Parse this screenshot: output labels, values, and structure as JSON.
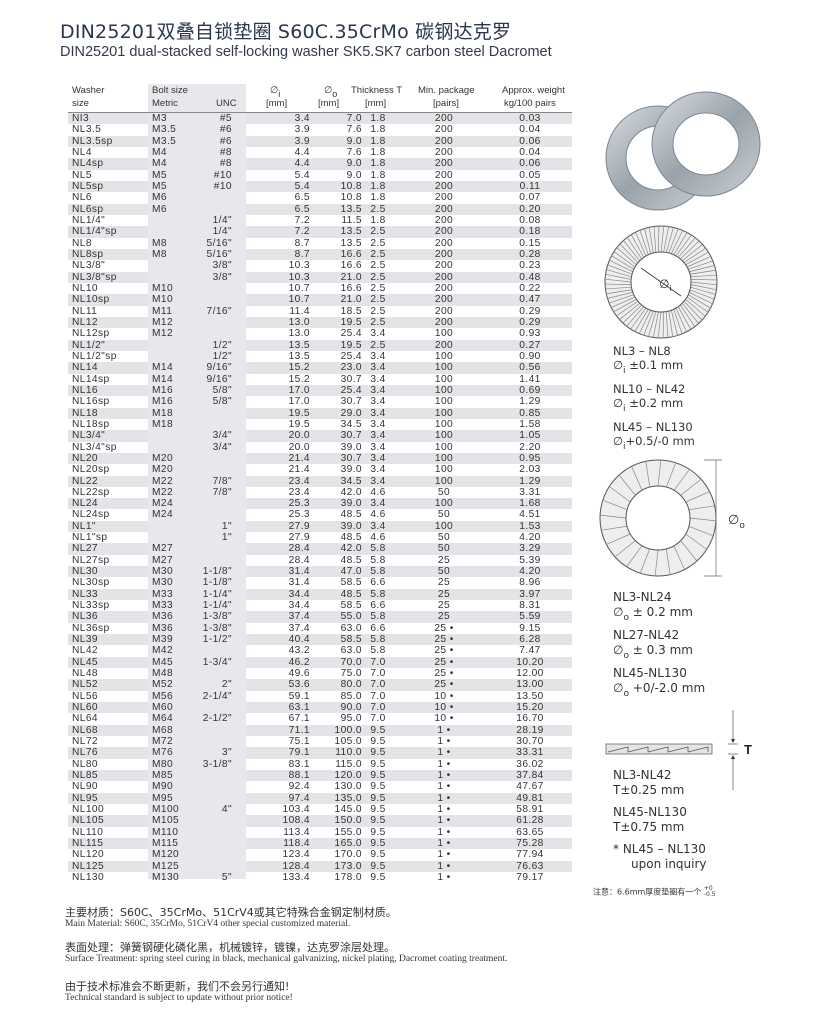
{
  "title": "DIN25201双叠自锁垫圈 S60C.35CrMo 碳钢达克罗",
  "subtitle": "DIN25201 dual-stacked self-locking washer SK5.SK7 carbon steel Dacromet",
  "table": {
    "headers": {
      "washer": [
        "Washer",
        "size"
      ],
      "bolt": "Bolt size",
      "metric": "Metric",
      "unc": "UNC",
      "di": [
        "∅",
        "i",
        "[mm]"
      ],
      "do": [
        "∅",
        "o",
        "[mm]"
      ],
      "thickness": [
        "Thickness T",
        "[mm]"
      ],
      "package": [
        "Min. package",
        "[pairs]"
      ],
      "weight": [
        "Approx. weight",
        "kg/100 pairs"
      ]
    },
    "rows": [
      [
        "NI3",
        "M3",
        "#5",
        "3.4",
        "7.0",
        "1.8",
        "200",
        "0.03"
      ],
      [
        "NL3.5",
        "M3.5",
        "#6",
        "3.9",
        "7.6",
        "1.8",
        "200",
        "0.04"
      ],
      [
        "NL3.5sp",
        "M3.5",
        "#6",
        "3.9",
        "9.0",
        "1.8",
        "200",
        "0.06"
      ],
      [
        "NL4",
        "M4",
        "#8",
        "4.4",
        "7.6",
        "1.8",
        "200",
        "0.04"
      ],
      [
        "NL4sp",
        "M4",
        "#8",
        "4.4",
        "9.0",
        "1.8",
        "200",
        "0.06"
      ],
      [
        "NL5",
        "M5",
        "#10",
        "5.4",
        "9.0",
        "1.8",
        "200",
        "0.05"
      ],
      [
        "NL5sp",
        "M5",
        "#10",
        "5.4",
        "10.8",
        "1.8",
        "200",
        "0.11"
      ],
      [
        "NL6",
        "M6",
        "",
        "6.5",
        "10.8",
        "1.8",
        "200",
        "0.07"
      ],
      [
        "NL6sp",
        "M6",
        "",
        "6.5",
        "13.5",
        "2.5",
        "200",
        "0.20"
      ],
      [
        "NL1/4\"",
        "",
        "1/4\"",
        "7.2",
        "11.5",
        "1.8",
        "200",
        "0.08"
      ],
      [
        "NL1/4\"sp",
        "",
        "1/4\"",
        "7.2",
        "13.5",
        "2.5",
        "200",
        "0.18"
      ],
      [
        "NL8",
        "M8",
        "5/16\"",
        "8.7",
        "13.5",
        "2.5",
        "200",
        "0.15"
      ],
      [
        "NL8sp",
        "M8",
        "5/16\"",
        "8.7",
        "16.6",
        "2.5",
        "200",
        "0.28"
      ],
      [
        "NL3/8\"",
        "",
        "3/8\"",
        "10.3",
        "16.6",
        "2.5",
        "200",
        "0.23"
      ],
      [
        "NL3/8\"sp",
        "",
        "3/8\"",
        "10.3",
        "21.0",
        "2.5",
        "200",
        "0.48"
      ],
      [
        "NL10",
        "M10",
        "",
        "10.7",
        "16.6",
        "2.5",
        "200",
        "0.22"
      ],
      [
        "NL10sp",
        "M10",
        "",
        "10.7",
        "21.0",
        "2.5",
        "200",
        "0.47"
      ],
      [
        "NL11",
        "M11",
        "7/16\"",
        "11.4",
        "18.5",
        "2.5",
        "200",
        "0.29"
      ],
      [
        "NL12",
        "M12",
        "",
        "13.0",
        "19.5",
        "2.5",
        "200",
        "0.29"
      ],
      [
        "NL12sp",
        "M12",
        "",
        "13.0",
        "25.4",
        "3.4",
        "100",
        "0.93"
      ],
      [
        "NL1/2\"",
        "",
        "1/2\"",
        "13.5",
        "19.5",
        "2.5",
        "200",
        "0.27"
      ],
      [
        "NL1/2\"sp",
        "",
        "1/2\"",
        "13.5",
        "25.4",
        "3.4",
        "100",
        "0.90"
      ],
      [
        "NL14",
        "M14",
        "9/16\"",
        "15.2",
        "23.0",
        "3.4",
        "100",
        "0.56"
      ],
      [
        "NL14sp",
        "M14",
        "9/16\"",
        "15.2",
        "30.7",
        "3.4",
        "100",
        "1.41"
      ],
      [
        "NL16",
        "M16",
        "5/8\"",
        "17.0",
        "25.4",
        "3.4",
        "100",
        "0.69"
      ],
      [
        "NL16sp",
        "M16",
        "5/8\"",
        "17.0",
        "30.7",
        "3.4",
        "100",
        "1.29"
      ],
      [
        "NL18",
        "M18",
        "",
        "19.5",
        "29.0",
        "3.4",
        "100",
        "0.85"
      ],
      [
        "NL18sp",
        "M18",
        "",
        "19.5",
        "34.5",
        "3.4",
        "100",
        "1.58"
      ],
      [
        "NL3/4\"",
        "",
        "3/4\"",
        "20.0",
        "30.7",
        "3.4",
        "100",
        "1.05"
      ],
      [
        "NL3/4\"sp",
        "",
        "3/4\"",
        "20.0",
        "39.0",
        "3.4",
        "100",
        "2.20"
      ],
      [
        "NL20",
        "M20",
        "",
        "21.4",
        "30.7",
        "3.4",
        "100",
        "0.95"
      ],
      [
        "NL20sp",
        "M20",
        "",
        "21.4",
        "39.0",
        "3.4",
        "100",
        "2.03"
      ],
      [
        "NL22",
        "M22",
        "7/8\"",
        "23.4",
        "34.5",
        "3.4",
        "100",
        "1.29"
      ],
      [
        "NL22sp",
        "M22",
        "7/8\"",
        "23.4",
        "42.0",
        "4.6",
        "50",
        "3.31"
      ],
      [
        "NL24",
        "M24",
        "",
        "25.3",
        "39.0",
        "3.4",
        "100",
        "1.68"
      ],
      [
        "NL24sp",
        "M24",
        "",
        "25.3",
        "48.5",
        "4.6",
        "50",
        "4.51"
      ],
      [
        "NL1\"",
        "",
        "1\"",
        "27.9",
        "39.0",
        "3.4",
        "100",
        "1.53"
      ],
      [
        "NL1\"sp",
        "",
        "1\"",
        "27.9",
        "48.5",
        "4.6",
        "50",
        "4.20"
      ],
      [
        "NL27",
        "M27",
        "",
        "28.4",
        "42.0",
        "5.8",
        "50",
        "3.29"
      ],
      [
        "NL27sp",
        "M27",
        "",
        "28.4",
        "48.5",
        "5.8",
        "25",
        "5.39"
      ],
      [
        "NL30",
        "M30",
        "1-1/8\"",
        "31.4",
        "47.0",
        "5.8",
        "50",
        "4.20"
      ],
      [
        "NL30sp",
        "M30",
        "1-1/8\"",
        "31.4",
        "58.5",
        "6.6",
        "25",
        "8.96"
      ],
      [
        "NL33",
        "M33",
        "1-1/4\"",
        "34.4",
        "48.5",
        "5.8",
        "25",
        "3.97"
      ],
      [
        "NL33sp",
        "M33",
        "1-1/4\"",
        "34.4",
        "58.5",
        "6.6",
        "25",
        "8.31"
      ],
      [
        "NL36",
        "M36",
        "1-3/8\"",
        "37.4",
        "55.0",
        "5.8",
        "25",
        "5.59"
      ],
      [
        "NL36sp",
        "M36",
        "1-3/8\"",
        "37.4",
        "63.0",
        "6.6",
        "25 •",
        "9.15"
      ],
      [
        "NL39",
        "M39",
        "1-1/2\"",
        "40.4",
        "58.5",
        "5.8",
        "25 •",
        "6.28"
      ],
      [
        "NL42",
        "M42",
        "",
        "43.2",
        "63.0",
        "5.8",
        "25 •",
        "7.47"
      ],
      [
        "NL45",
        "M45",
        "1-3/4\"",
        "46.2",
        "70.0",
        "7.0",
        "25 •",
        "10.20"
      ],
      [
        "NL48",
        "M48",
        "",
        "49.6",
        "75.0",
        "7.0",
        "25 •",
        "12.00"
      ],
      [
        "NL52",
        "M52",
        "2\"",
        "53.6",
        "80.0",
        "7.0",
        "25 •",
        "13.00"
      ],
      [
        "NL56",
        "M56",
        "2-1/4\"",
        "59.1",
        "85.0",
        "7.0",
        "10 •",
        "13.50"
      ],
      [
        "NL60",
        "M60",
        "",
        "63.1",
        "90.0",
        "7.0",
        "10 •",
        "15.20"
      ],
      [
        "NL64",
        "M64",
        "2-1/2\"",
        "67.1",
        "95.0",
        "7.0",
        "10 •",
        "16.70"
      ],
      [
        "NL68",
        "M68",
        "",
        "71.1",
        "100.0",
        "9.5",
        "1 •",
        "28.19"
      ],
      [
        "NL72",
        "M72",
        "",
        "75.1",
        "105.0",
        "9.5",
        "1 •",
        "30.70"
      ],
      [
        "NL76",
        "M76",
        "3\"",
        "79.1",
        "110.0",
        "9.5",
        "1 •",
        "33.31"
      ],
      [
        "NL80",
        "M80",
        "3-1/8\"",
        "83.1",
        "115.0",
        "9.5",
        "1 •",
        "36.02"
      ],
      [
        "NL85",
        "M85",
        "",
        "88.1",
        "120.0",
        "9.5",
        "1 •",
        "37.84"
      ],
      [
        "NL90",
        "M90",
        "",
        "92.4",
        "130.0",
        "9.5",
        "1 •",
        "47.67"
      ],
      [
        "NL95",
        "M95",
        "",
        "97.4",
        "135.0",
        "9.5",
        "1 •",
        "49.81"
      ],
      [
        "NL100",
        "M100",
        "4\"",
        "103.4",
        "145.0",
        "9.5",
        "1 •",
        "58.91"
      ],
      [
        "NL105",
        "M105",
        "",
        "108.4",
        "150.0",
        "9.5",
        "1 •",
        "61.28"
      ],
      [
        "NL110",
        "M110",
        "",
        "113.4",
        "155.0",
        "9.5",
        "1 •",
        "63.65"
      ],
      [
        "NL115",
        "M115",
        "",
        "118.4",
        "165.0",
        "9.5",
        "1 •",
        "75.28"
      ],
      [
        "NL120",
        "M120",
        "",
        "123.4",
        "170.0",
        "9.5",
        "1 •",
        "77.94"
      ],
      [
        "NL125",
        "M125",
        "",
        "128.4",
        "173.0",
        "9.5",
        "1 •",
        "76.63"
      ],
      [
        "NL130",
        "M130",
        "5\"",
        "133.4",
        "178.0",
        "9.5",
        "1 •",
        "79.17"
      ]
    ]
  },
  "diagrams": {
    "inner_label": [
      "∅",
      "i"
    ],
    "outer_label": [
      "∅",
      "o"
    ],
    "thickness_label": "T"
  },
  "tolerances": {
    "inner": [
      {
        "range": "NL3 – NL8",
        "sym": "∅",
        "sub": "i",
        "tol": "±0.1 mm"
      },
      {
        "range": "NL10 – NL42",
        "sym": "∅",
        "sub": "i",
        "tol": "±0.2 mm"
      },
      {
        "range": "NL45 – NL130",
        "sym": "∅",
        "sub": "i",
        "tol": "+0.5/-0 mm"
      }
    ],
    "outer": [
      {
        "range": "NL3-NL24",
        "sym": "∅",
        "sub": "o",
        "tol": "± 0.2 mm"
      },
      {
        "range": "NL27-NL42",
        "sym": "∅",
        "sub": "o",
        "tol": "± 0.3 mm"
      },
      {
        "range": "NL45-NL130",
        "sym": "∅",
        "sub": "o",
        "tol": "+0/-2.0 mm"
      }
    ],
    "thickness": [
      {
        "range": "NL3-NL42",
        "tol": "T±0.25 mm"
      },
      {
        "range": "NL45-NL130",
        "tol": "T±0.75 mm"
      }
    ],
    "inquiry": [
      "* NL45 – NL130",
      "upon inquiry"
    ],
    "remark": "注意：6.6mm厚度垫圈有一个",
    "remark_tol": [
      "+0",
      "-0.5"
    ]
  },
  "footer": {
    "material_cn": "主要材质：S60C、35CrMo、51CrV4或其它特殊合金钢定制材质。",
    "material_en": "Main Material: S60C, 35CrMo, 51CrV4 other special customized material.",
    "surface_cn": "表面处理：弹簧钢硬化磷化黑，机械镀锌，镀镍，达克罗涂层处理。",
    "surface_en": "Surface Treatment: spring steel curing in black, mechanical galvanizing, nickel plating, Dacromet coating treatment.",
    "notice_cn": "由于技术标准会不断更新，我们不会另行通知!",
    "notice_en": "Technical standard is subject to update without prior notice!"
  }
}
